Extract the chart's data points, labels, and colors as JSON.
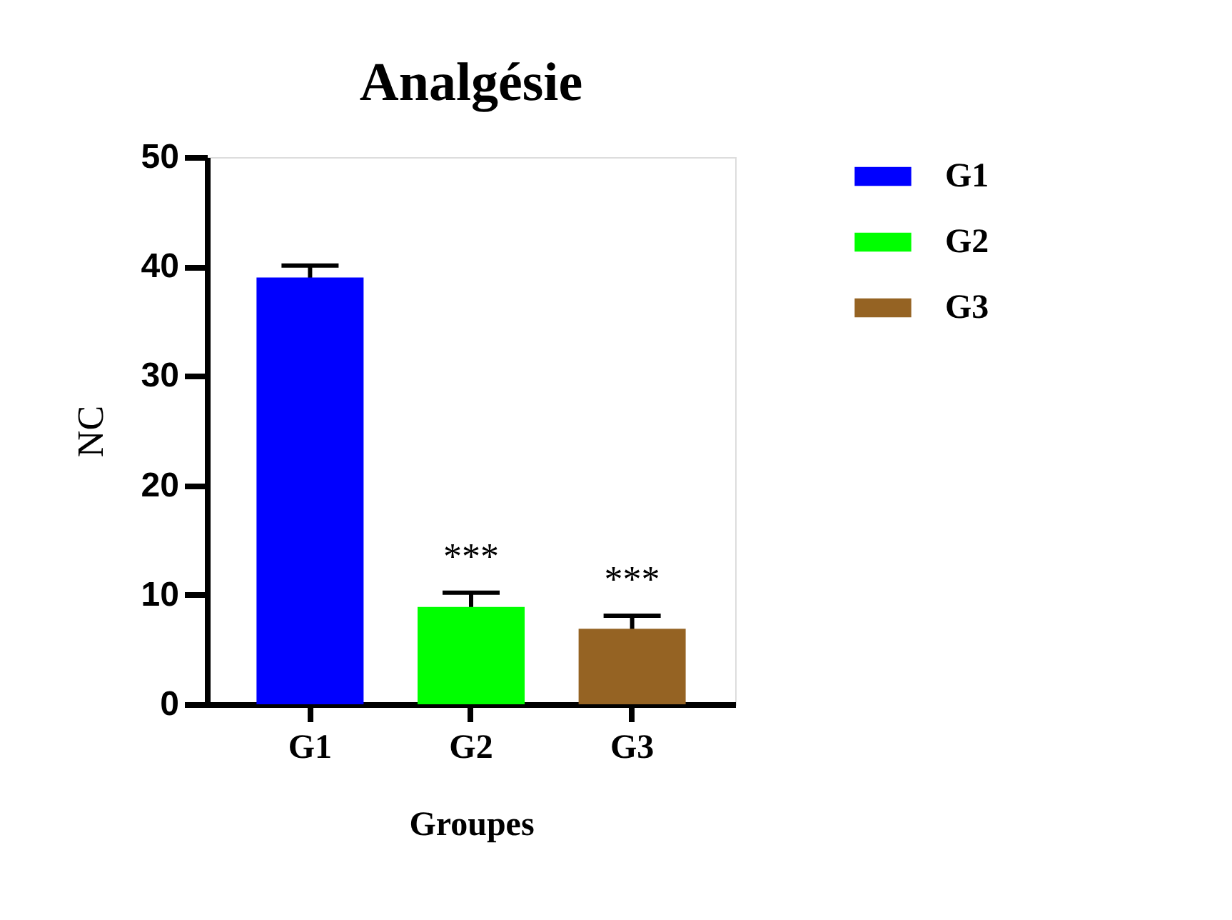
{
  "chart_data": {
    "type": "bar",
    "title": "Analgésie",
    "xlabel": "Groupes",
    "ylabel": "NC",
    "categories": [
      "G1",
      "G2",
      "G3"
    ],
    "series": [
      {
        "name": "G1",
        "color": "#0000ff",
        "values": [
          39.0,
          null,
          null
        ],
        "errors": [
          1.1,
          null,
          null
        ]
      },
      {
        "name": "G2",
        "color": "#00ff00",
        "values": [
          null,
          8.9,
          null
        ],
        "errors": [
          null,
          1.3,
          null
        ]
      },
      {
        "name": "G3",
        "color": "#956323",
        "values": [
          null,
          null,
          6.9
        ],
        "errors": [
          null,
          null,
          1.2
        ]
      }
    ],
    "ylim": [
      0,
      50
    ],
    "yticks": [
      0,
      10,
      20,
      30,
      40,
      50
    ],
    "grid": false,
    "legend": "top right",
    "annotations": [
      "***",
      "***"
    ]
  }
}
